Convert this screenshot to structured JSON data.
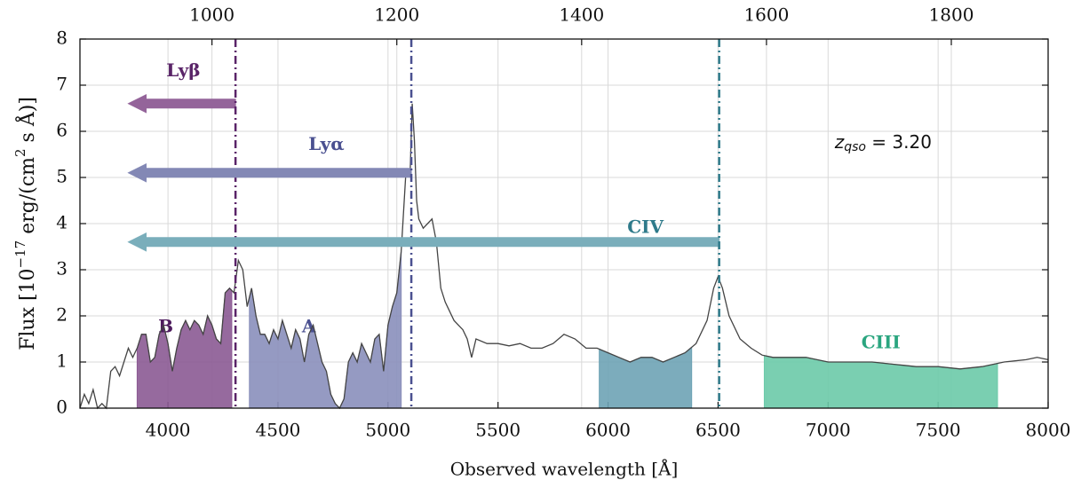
{
  "chart_data": {
    "type": "line",
    "xlabel": "Observed wavelength [Å]",
    "ylabel_parts": [
      {
        "text": "Flux [10"
      },
      {
        "text": "−17",
        "sup": true
      },
      {
        "text": " erg/(cm"
      },
      {
        "text": "2",
        "sup": true
      },
      {
        "text": " s Å)]"
      }
    ],
    "xlim": [
      3600,
      8000
    ],
    "xticks": [
      4000,
      4500,
      5000,
      5500,
      6000,
      6500,
      7000,
      7500,
      8000
    ],
    "ylim": [
      0,
      8
    ],
    "yticks": [
      0,
      1,
      2,
      3,
      4,
      5,
      6,
      7,
      8
    ],
    "top_xticks": [
      1000,
      1200,
      1400,
      1600,
      1800
    ],
    "grid": true,
    "redshift": {
      "symbol": "z",
      "subscript": "qso",
      "value": 3.2,
      "label": " = 3.20"
    },
    "spectrum": {
      "color": "#444444",
      "x": [
        3600,
        3620,
        3640,
        3660,
        3680,
        3700,
        3720,
        3740,
        3760,
        3780,
        3800,
        3820,
        3840,
        3860,
        3880,
        3900,
        3920,
        3940,
        3960,
        3980,
        4000,
        4020,
        4040,
        4060,
        4080,
        4100,
        4120,
        4140,
        4160,
        4180,
        4200,
        4220,
        4240,
        4260,
        4280,
        4300,
        4320,
        4340,
        4360,
        4380,
        4400,
        4420,
        4440,
        4460,
        4480,
        4500,
        4520,
        4540,
        4560,
        4580,
        4600,
        4620,
        4640,
        4660,
        4680,
        4700,
        4720,
        4740,
        4760,
        4780,
        4800,
        4820,
        4840,
        4860,
        4880,
        4900,
        4920,
        4940,
        4960,
        4980,
        5000,
        5020,
        5040,
        5060,
        5080,
        5090,
        5100,
        5110,
        5120,
        5130,
        5140,
        5160,
        5180,
        5200,
        5220,
        5240,
        5260,
        5280,
        5300,
        5320,
        5340,
        5360,
        5380,
        5400,
        5450,
        5500,
        5550,
        5600,
        5650,
        5700,
        5750,
        5800,
        5850,
        5900,
        5950,
        6000,
        6050,
        6100,
        6150,
        6200,
        6250,
        6300,
        6350,
        6400,
        6450,
        6480,
        6500,
        6520,
        6550,
        6600,
        6650,
        6700,
        6750,
        6800,
        6900,
        7000,
        7100,
        7200,
        7300,
        7400,
        7500,
        7600,
        7700,
        7800,
        7900,
        7950,
        8000
      ],
      "values": [
        0.0,
        0.3,
        0.1,
        0.4,
        0.0,
        0.1,
        0.0,
        0.8,
        0.9,
        0.7,
        1.0,
        1.3,
        1.1,
        1.3,
        1.6,
        1.6,
        1.0,
        1.1,
        1.6,
        1.8,
        1.4,
        0.8,
        1.3,
        1.7,
        1.9,
        1.7,
        1.9,
        1.8,
        1.6,
        2.0,
        1.8,
        1.5,
        1.4,
        2.5,
        2.6,
        2.5,
        3.2,
        3.0,
        2.2,
        2.6,
        2.0,
        1.6,
        1.6,
        1.4,
        1.7,
        1.5,
        1.9,
        1.6,
        1.3,
        1.7,
        1.5,
        1.0,
        1.6,
        1.8,
        1.4,
        1.0,
        0.8,
        0.3,
        0.1,
        0.0,
        0.2,
        1.0,
        1.2,
        1.0,
        1.4,
        1.2,
        1.0,
        1.5,
        1.6,
        0.8,
        1.8,
        2.2,
        2.5,
        3.4,
        5.0,
        5.2,
        5.0,
        6.6,
        5.8,
        4.5,
        4.1,
        3.9,
        4.0,
        4.1,
        3.6,
        2.6,
        2.3,
        2.1,
        1.9,
        1.8,
        1.7,
        1.5,
        1.1,
        1.5,
        1.4,
        1.4,
        1.35,
        1.4,
        1.3,
        1.3,
        1.4,
        1.6,
        1.5,
        1.3,
        1.3,
        1.2,
        1.1,
        1.0,
        1.1,
        1.1,
        1.0,
        1.1,
        1.2,
        1.4,
        1.9,
        2.6,
        2.85,
        2.6,
        2.0,
        1.5,
        1.3,
        1.15,
        1.1,
        1.1,
        1.1,
        1.0,
        1.0,
        1.0,
        0.95,
        0.9,
        0.9,
        0.85,
        0.9,
        1.0,
        1.05,
        1.1,
        1.05
      ]
    },
    "regions": [
      {
        "label": "B",
        "range": [
          3860,
          4290
        ],
        "color": "#8b5a93",
        "label_color": "#4e1c5e"
      },
      {
        "label": "A",
        "range": [
          4370,
          5060
        ],
        "color": "#8a8fbb",
        "label_color": "#4a5090"
      },
      {
        "range": [
          5960,
          6380
        ],
        "color": "#6ea3b5"
      },
      {
        "label": "CIII",
        "range": [
          6710,
          7770
        ],
        "color": "#6ccaa9",
        "label_color": "#2aa57f"
      }
    ],
    "lines": [
      {
        "name": "Lyβ",
        "x": 4307,
        "color": "#5a2468",
        "arrow_color": "#94649a"
      },
      {
        "name": "Lyα",
        "x": 5106,
        "color": "#4a5090",
        "arrow_color": "#8388b5"
      },
      {
        "name": "CIV",
        "x": 6505,
        "color": "#2e7a8a",
        "arrow_color": "#7aaebb"
      }
    ]
  }
}
